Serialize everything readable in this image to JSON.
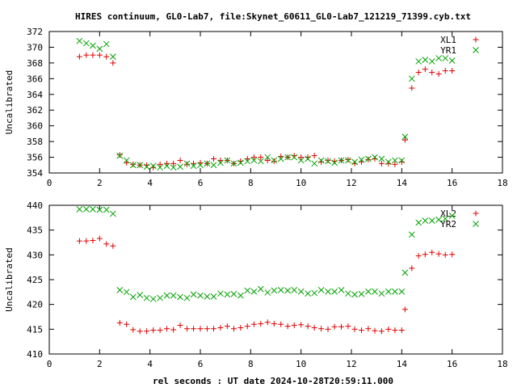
{
  "title": "HIRES continuum, GL0-Lab7, file:Skynet_60611_GL0-Lab7_121219_71399.cyb.txt",
  "xlabel": "rel seconds : UT date 2024-10-28T20:59:11.000",
  "colors": {
    "xl": "#e00000",
    "yr": "#00a000"
  },
  "chart_data": [
    {
      "type": "scatter",
      "ylabel": "Uncalibrated",
      "xlim": [
        0,
        18
      ],
      "ylim": [
        354,
        372
      ],
      "xticks": [
        0,
        2,
        4,
        6,
        8,
        10,
        12,
        14,
        16,
        18
      ],
      "yticks": [
        354,
        356,
        358,
        360,
        362,
        364,
        366,
        368,
        370,
        372
      ],
      "grid": false,
      "legend_position": "top-right",
      "series": [
        {
          "name": "XL1",
          "marker": "plus",
          "color": "#e00000",
          "x": [
            1.2,
            1.47,
            1.73,
            2.0,
            2.27,
            2.53,
            2.8,
            3.07,
            3.33,
            3.6,
            3.87,
            4.13,
            4.4,
            4.67,
            4.93,
            5.2,
            5.47,
            5.73,
            6.0,
            6.27,
            6.53,
            6.8,
            7.07,
            7.33,
            7.6,
            7.87,
            8.13,
            8.4,
            8.67,
            8.93,
            9.2,
            9.47,
            9.73,
            10.0,
            10.27,
            10.53,
            10.8,
            11.07,
            11.33,
            11.6,
            11.87,
            12.13,
            12.4,
            12.67,
            12.93,
            13.2,
            13.47,
            13.73,
            14.0,
            14.13,
            14.4,
            14.67,
            14.93,
            15.2,
            15.47,
            15.73,
            16.0
          ],
          "y": [
            368.8,
            369.0,
            369.0,
            369.0,
            368.8,
            368.0,
            356.3,
            355.3,
            355.1,
            355.0,
            355.0,
            354.7,
            355.1,
            355.2,
            355.2,
            355.6,
            355.1,
            355.2,
            355.3,
            355.2,
            355.8,
            355.6,
            355.6,
            355.2,
            355.5,
            355.8,
            356.0,
            356.0,
            355.6,
            355.5,
            356.1,
            356.0,
            356.2,
            356.0,
            356.0,
            356.2,
            355.4,
            355.6,
            355.5,
            355.6,
            355.7,
            355.2,
            355.4,
            355.7,
            355.8,
            355.2,
            355.2,
            355.1,
            355.4,
            358.2,
            364.8,
            366.8,
            367.2,
            366.8,
            366.6,
            367.0,
            367.0
          ]
        },
        {
          "name": "YR1",
          "marker": "cross",
          "color": "#00a000",
          "x": [
            1.2,
            1.47,
            1.73,
            2.0,
            2.27,
            2.53,
            2.8,
            3.07,
            3.33,
            3.6,
            3.87,
            4.13,
            4.4,
            4.67,
            4.93,
            5.2,
            5.47,
            5.73,
            6.0,
            6.27,
            6.53,
            6.8,
            7.07,
            7.33,
            7.6,
            7.87,
            8.13,
            8.4,
            8.67,
            8.93,
            9.2,
            9.47,
            9.73,
            10.0,
            10.27,
            10.53,
            10.8,
            11.07,
            11.33,
            11.6,
            11.87,
            12.13,
            12.4,
            12.67,
            12.93,
            13.2,
            13.47,
            13.73,
            14.0,
            14.13,
            14.4,
            14.67,
            14.93,
            15.2,
            15.47,
            15.73,
            16.0
          ],
          "y": [
            370.8,
            370.5,
            370.2,
            369.8,
            370.4,
            368.8,
            356.2,
            355.6,
            355.0,
            355.0,
            354.8,
            354.9,
            354.7,
            354.9,
            354.7,
            354.8,
            355.2,
            354.9,
            355.0,
            355.2,
            355.0,
            355.3,
            355.6,
            355.2,
            355.3,
            355.5,
            355.6,
            355.5,
            356.0,
            355.6,
            355.8,
            356.0,
            356.0,
            355.6,
            355.8,
            355.2,
            355.6,
            355.5,
            355.3,
            355.6,
            355.6,
            355.4,
            355.7,
            355.8,
            356.0,
            355.8,
            355.4,
            355.6,
            355.6,
            358.6,
            366.0,
            368.2,
            368.4,
            368.2,
            368.6,
            368.6,
            368.3
          ]
        }
      ]
    },
    {
      "type": "scatter",
      "ylabel": "Uncalibrated",
      "xlim": [
        0,
        18
      ],
      "ylim": [
        410,
        440
      ],
      "xticks": [
        0,
        2,
        4,
        6,
        8,
        10,
        12,
        14,
        16,
        18
      ],
      "yticks": [
        410,
        415,
        420,
        425,
        430,
        435,
        440
      ],
      "grid": false,
      "legend_position": "top-right",
      "series": [
        {
          "name": "XL2",
          "marker": "plus",
          "color": "#e00000",
          "x": [
            1.2,
            1.47,
            1.73,
            2.0,
            2.27,
            2.53,
            2.8,
            3.07,
            3.33,
            3.6,
            3.87,
            4.13,
            4.4,
            4.67,
            4.93,
            5.2,
            5.47,
            5.73,
            6.0,
            6.27,
            6.53,
            6.8,
            7.07,
            7.33,
            7.6,
            7.87,
            8.13,
            8.4,
            8.67,
            8.93,
            9.2,
            9.47,
            9.73,
            10.0,
            10.27,
            10.53,
            10.8,
            11.07,
            11.33,
            11.6,
            11.87,
            12.13,
            12.4,
            12.67,
            12.93,
            13.2,
            13.47,
            13.73,
            14.0,
            14.13,
            14.4,
            14.67,
            14.93,
            15.2,
            15.47,
            15.73,
            16.0
          ],
          "y": [
            432.8,
            432.8,
            432.9,
            433.3,
            432.2,
            431.8,
            416.3,
            416.0,
            414.9,
            414.6,
            414.6,
            414.8,
            414.8,
            415.1,
            414.9,
            415.8,
            415.1,
            415.1,
            415.1,
            415.1,
            415.1,
            415.3,
            415.6,
            415.1,
            415.3,
            415.6,
            416.0,
            416.1,
            416.4,
            416.1,
            416.0,
            415.6,
            415.8,
            415.9,
            415.6,
            415.3,
            415.1,
            415.0,
            415.5,
            415.5,
            415.6,
            415.0,
            414.8,
            415.1,
            414.7,
            414.6,
            415.0,
            414.8,
            414.8,
            419.0,
            427.3,
            429.8,
            430.1,
            430.5,
            430.2,
            430.0,
            430.1
          ]
        },
        {
          "name": "YR2",
          "marker": "cross",
          "color": "#00a000",
          "x": [
            1.2,
            1.47,
            1.73,
            2.0,
            2.27,
            2.53,
            2.8,
            3.07,
            3.33,
            3.6,
            3.87,
            4.13,
            4.4,
            4.67,
            4.93,
            5.2,
            5.47,
            5.73,
            6.0,
            6.27,
            6.53,
            6.8,
            7.07,
            7.33,
            7.6,
            7.87,
            8.13,
            8.4,
            8.67,
            8.93,
            9.2,
            9.47,
            9.73,
            10.0,
            10.27,
            10.53,
            10.8,
            11.07,
            11.33,
            11.6,
            11.87,
            12.13,
            12.4,
            12.67,
            12.93,
            13.2,
            13.47,
            13.73,
            14.0,
            14.13,
            14.4,
            14.67,
            14.93,
            15.2,
            15.47,
            15.73,
            16.0
          ],
          "y": [
            439.2,
            439.2,
            439.2,
            439.1,
            439.1,
            438.3,
            422.9,
            422.5,
            421.5,
            421.9,
            421.3,
            421.1,
            421.3,
            421.8,
            421.8,
            421.5,
            421.3,
            422.0,
            421.8,
            421.6,
            421.6,
            422.2,
            422.0,
            422.1,
            421.8,
            422.8,
            422.6,
            423.1,
            422.4,
            422.8,
            422.9,
            422.8,
            422.9,
            422.6,
            422.2,
            422.3,
            422.9,
            422.6,
            422.6,
            422.9,
            422.2,
            422.0,
            422.1,
            422.6,
            422.6,
            422.2,
            422.6,
            422.6,
            422.6,
            426.4,
            434.1,
            436.5,
            436.9,
            436.9,
            437.1,
            437.3,
            437.9
          ]
        }
      ]
    }
  ]
}
